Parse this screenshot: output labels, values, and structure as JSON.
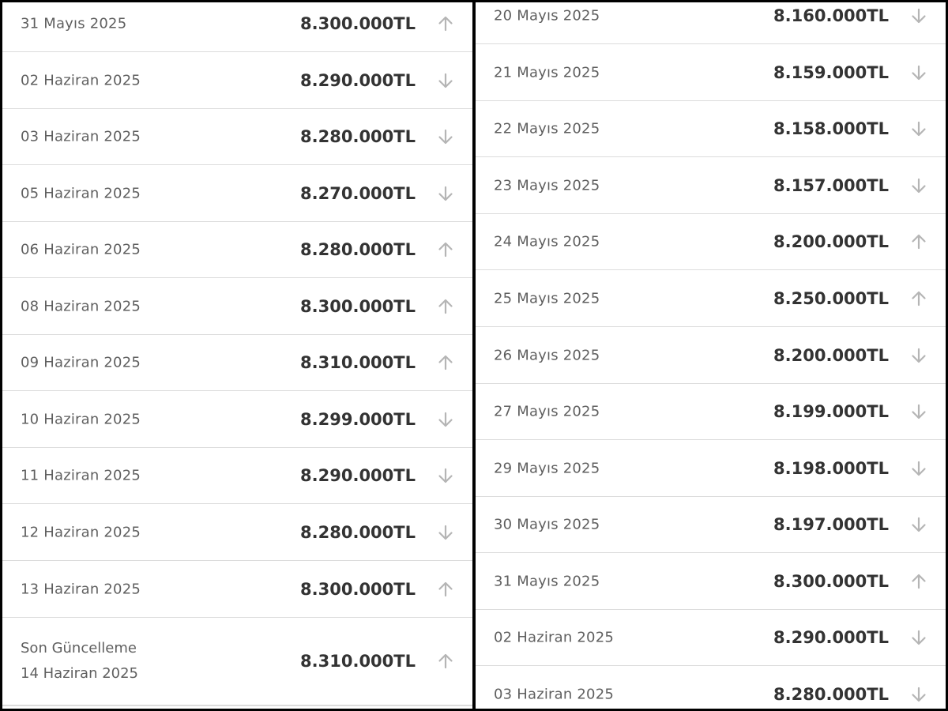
{
  "left_list": [
    {
      "date": "31 Mayıs 2025",
      "price": "8.300.000TL",
      "trend": "up"
    },
    {
      "date": "02 Haziran 2025",
      "price": "8.290.000TL",
      "trend": "down"
    },
    {
      "date": "03 Haziran 2025",
      "price": "8.280.000TL",
      "trend": "down"
    },
    {
      "date": "05 Haziran 2025",
      "price": "8.270.000TL",
      "trend": "down"
    },
    {
      "date": "06 Haziran 2025",
      "price": "8.280.000TL",
      "trend": "up"
    },
    {
      "date": "08 Haziran 2025",
      "price": "8.300.000TL",
      "trend": "up"
    },
    {
      "date": "09 Haziran 2025",
      "price": "8.310.000TL",
      "trend": "up"
    },
    {
      "date": "10 Haziran 2025",
      "price": "8.299.000TL",
      "trend": "down"
    },
    {
      "date": "11 Haziran 2025",
      "price": "8.290.000TL",
      "trend": "down"
    },
    {
      "date": "12 Haziran 2025",
      "price": "8.280.000TL",
      "trend": "down"
    },
    {
      "date": "13 Haziran 2025",
      "price": "8.300.000TL",
      "trend": "up"
    }
  ],
  "last_update": {
    "label": "Son Güncelleme",
    "date": "14 Haziran 2025",
    "price": "8.310.000TL",
    "trend": "up"
  },
  "right_list": [
    {
      "date": "20 Mayıs 2025",
      "price": "8.160.000TL",
      "trend": "down"
    },
    {
      "date": "21 Mayıs 2025",
      "price": "8.159.000TL",
      "trend": "down"
    },
    {
      "date": "22 Mayıs 2025",
      "price": "8.158.000TL",
      "trend": "down"
    },
    {
      "date": "23 Mayıs 2025",
      "price": "8.157.000TL",
      "trend": "down"
    },
    {
      "date": "24 Mayıs 2025",
      "price": "8.200.000TL",
      "trend": "up"
    },
    {
      "date": "25 Mayıs 2025",
      "price": "8.250.000TL",
      "trend": "up"
    },
    {
      "date": "26 Mayıs 2025",
      "price": "8.200.000TL",
      "trend": "down"
    },
    {
      "date": "27 Mayıs 2025",
      "price": "8.199.000TL",
      "trend": "down"
    },
    {
      "date": "29 Mayıs 2025",
      "price": "8.198.000TL",
      "trend": "down"
    },
    {
      "date": "30 Mayıs 2025",
      "price": "8.197.000TL",
      "trend": "down"
    },
    {
      "date": "31 Mayıs 2025",
      "price": "8.300.000TL",
      "trend": "up"
    },
    {
      "date": "02 Haziran 2025",
      "price": "8.290.000TL",
      "trend": "down"
    },
    {
      "date": "03 Haziran 2025",
      "price": "8.280.000TL",
      "trend": "down"
    }
  ],
  "colors": {
    "date_text": "#5f5f5f",
    "price_text": "#333333",
    "arrow": "#b5b5b5",
    "divider": "#dcdcdc",
    "frame": "#000000"
  },
  "icons": {
    "up": "arrow-up-icon",
    "down": "arrow-down-icon"
  }
}
